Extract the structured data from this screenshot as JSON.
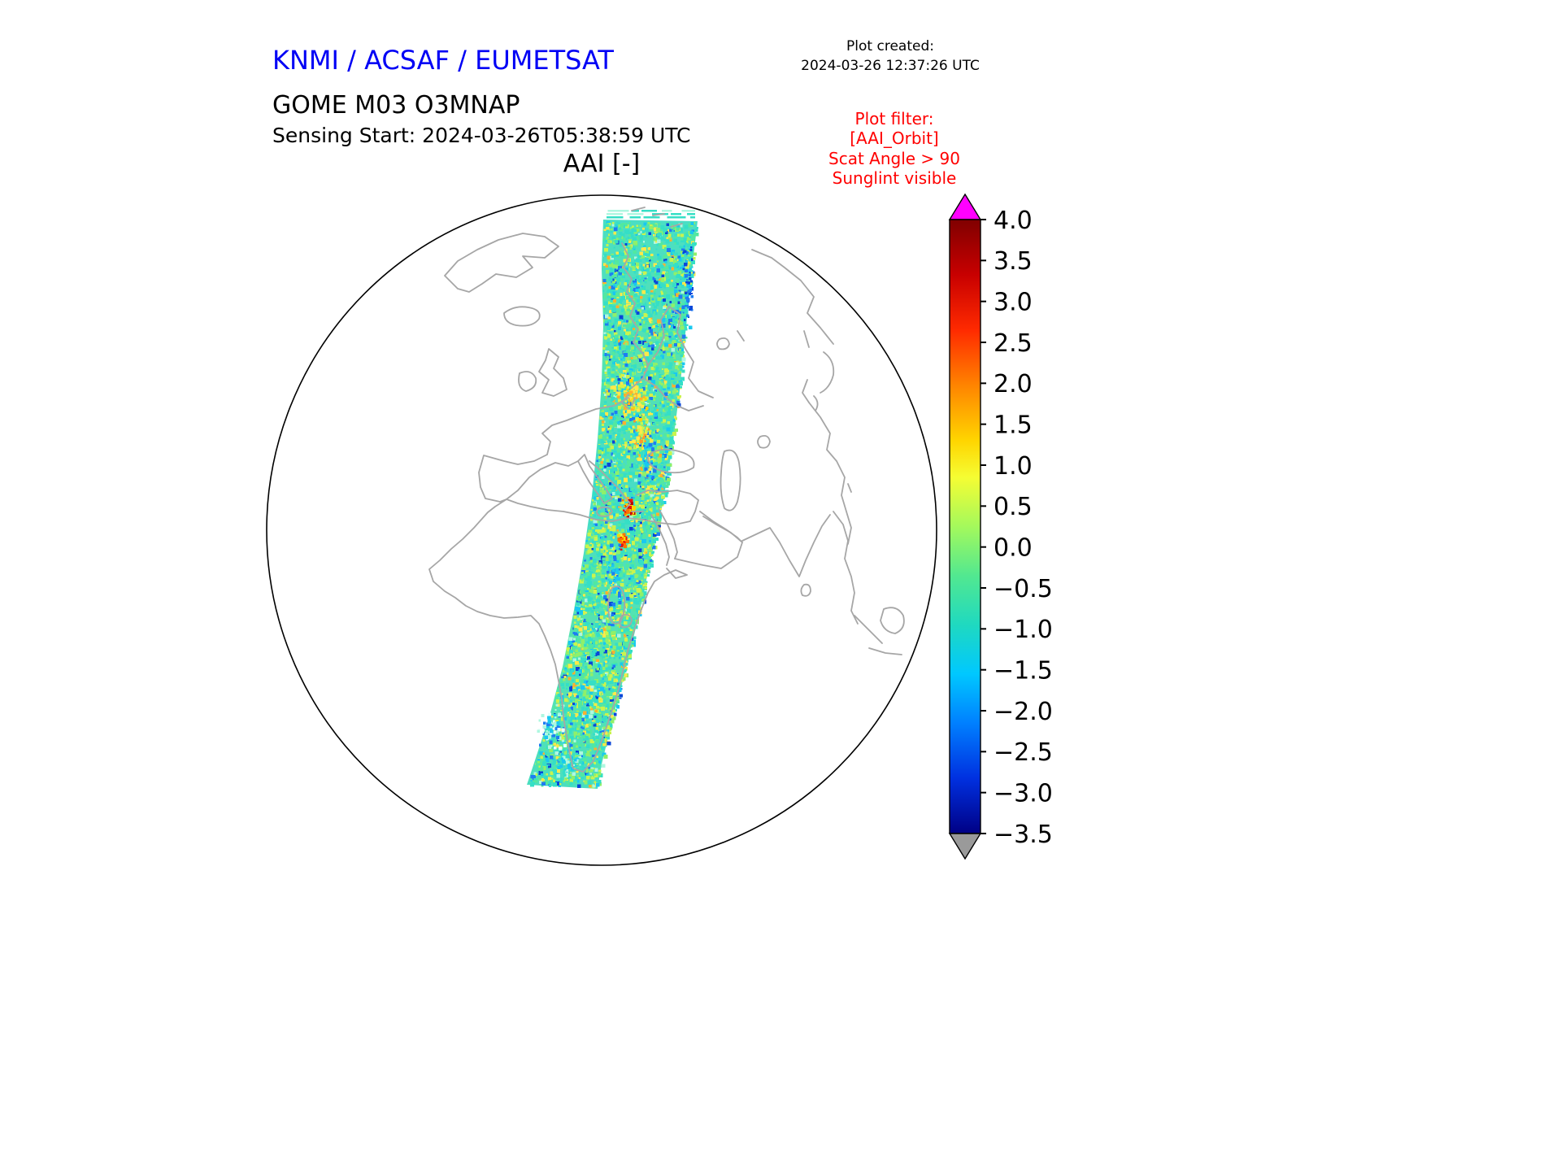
{
  "header": {
    "org_title": "KNMI / ACSAF / EUMETSAT",
    "plot_created_label": "Plot created:",
    "plot_created_value": "2024-03-26 12:37:26 UTC",
    "product_title": "GOME M03 O3MNAP",
    "sensing_start": "Sensing Start: 2024-03-26T05:38:59 UTC",
    "plot_filter_lines": [
      "Plot filter:",
      "[AAI_Orbit]",
      "Scat Angle > 90",
      "Sunglint visible"
    ]
  },
  "chart_data": {
    "type": "heatmap",
    "title": "AAI [-]",
    "variable": "Absorbing Aerosol Index (dimensionless)",
    "projection": "orthographic globe centered over Europe / Africa with gray coastlines",
    "swath": {
      "description": "Single descending GOME-2 (Metop-B) orbit swath running from the Arctic over Scandinavia, eastern Europe, the Middle East and eastern Africa down to the South Atlantic",
      "dominant_values": "mostly -1.0 to +1.0 (turquoise / green speckle)",
      "hotspots": [
        {
          "region": "Sudan / Red Sea area",
          "approx_value": 3.0
        },
        {
          "region": "East Africa (south of Red Sea)",
          "approx_value": 2.5
        },
        {
          "region": "Eastern Europe yellow streaks",
          "approx_value": 1.5
        },
        {
          "region": "swath edges",
          "approx_value": -2.0
        }
      ]
    },
    "colorbar": {
      "orientation": "vertical",
      "position": "right",
      "colormap": "jet-like rainbow",
      "over_color": "#ff00ff",
      "under_color": "#9a9a9a",
      "ticks": [
        4.0,
        3.5,
        3.0,
        2.5,
        2.0,
        1.5,
        1.0,
        0.5,
        0.0,
        -0.5,
        -1.0,
        -1.5,
        -2.0,
        -2.5,
        -3.0,
        -3.5
      ],
      "tick_labels": [
        "4.0",
        "3.5",
        "3.0",
        "2.5",
        "2.0",
        "1.5",
        "1.0",
        "0.5",
        "0.0",
        "−0.5",
        "−1.0",
        "−1.5",
        "−2.0",
        "−2.5",
        "−3.0",
        "−3.5"
      ],
      "value_range": [
        -3.5,
        4.0
      ]
    }
  },
  "colors": {
    "org_title_blue": "#0000f5",
    "filter_red": "#ff0000",
    "coastline_gray": "#a6a6a6",
    "globe_outline": "#000000"
  }
}
